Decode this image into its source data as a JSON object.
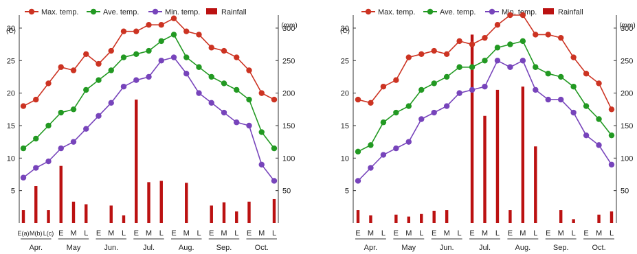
{
  "colors": {
    "max": "#cc3322",
    "ave": "#229922",
    "min": "#7744bb",
    "rain": "#bb1111",
    "axis": "#333333"
  },
  "legend": {
    "max": "Max. temp.",
    "ave": "Ave. temp.",
    "min": "Min. temp.",
    "rain": "Rainfall"
  },
  "chart_data": [
    {
      "type": "line",
      "left_unit": "(C)",
      "right_unit": "(mm)",
      "ylim": [
        0,
        32
      ],
      "y2lim": [
        0,
        320
      ],
      "yticks": [
        "5",
        "10",
        "15",
        "20",
        "25",
        "30"
      ],
      "y2ticks": [
        "50",
        "100",
        "150",
        "200",
        "250",
        "300"
      ],
      "months": [
        "Apr.",
        "May",
        "Jun.",
        "Jul.",
        "Aug.",
        "Sep.",
        "Oct."
      ],
      "subticks": [
        "E",
        "M",
        "L"
      ],
      "first_subticks": [
        "E(a)",
        "M(b)",
        "L(c)"
      ],
      "series": [
        {
          "name": "Max. temp.",
          "values": [
            18,
            19,
            21.5,
            24,
            23.5,
            26,
            24.5,
            26.5,
            29.5,
            29.5,
            30.5,
            30.5,
            31.5,
            29.5,
            29,
            27,
            26.5,
            25.5,
            23.5,
            20,
            19
          ]
        },
        {
          "name": "Ave. temp.",
          "values": [
            11.5,
            13,
            15,
            17,
            17.5,
            20.5,
            22,
            23.5,
            25.5,
            26,
            26.5,
            28,
            29,
            25.5,
            24,
            22.5,
            21.5,
            20.5,
            19,
            14,
            11.5
          ]
        },
        {
          "name": "Min. temp.",
          "values": [
            7,
            8.5,
            9.5,
            11.5,
            12.5,
            14.5,
            16.5,
            18.5,
            21,
            22,
            22.5,
            25,
            25.5,
            23,
            20,
            18.5,
            17,
            15.5,
            15,
            9,
            6.5
          ]
        },
        {
          "name": "Rainfall",
          "values": [
            20,
            57,
            20,
            88,
            33,
            29,
            null,
            27,
            12,
            190,
            63,
            65,
            null,
            62,
            null,
            27,
            32,
            18,
            33,
            null,
            37
          ]
        }
      ]
    },
    {
      "type": "line",
      "left_unit": "(C)",
      "right_unit": "(mm)",
      "ylim": [
        0,
        32
      ],
      "y2lim": [
        0,
        320
      ],
      "yticks": [
        "5",
        "10",
        "15",
        "20",
        "25",
        "30"
      ],
      "y2ticks": [
        "50",
        "100",
        "150",
        "200",
        "250",
        "300"
      ],
      "months": [
        "Apr.",
        "May",
        "Jun.",
        "Jul.",
        "Aug.",
        "Sep.",
        "Oct."
      ],
      "subticks": [
        "E",
        "M",
        "L"
      ],
      "series": [
        {
          "name": "Max. temp.",
          "values": [
            19,
            18.5,
            21,
            22,
            25.5,
            26,
            26.5,
            26,
            28,
            27.5,
            28.5,
            30.5,
            32,
            32,
            29,
            29,
            28.5,
            25.5,
            23,
            21.5,
            17.5
          ]
        },
        {
          "name": "Ave. temp.",
          "values": [
            11,
            12,
            15.5,
            17,
            18,
            20.5,
            21.5,
            22.5,
            24,
            24,
            25,
            27,
            27.5,
            28,
            24,
            23,
            22.5,
            21,
            18,
            16,
            13.5
          ]
        },
        {
          "name": "Min. temp.",
          "values": [
            6.5,
            8.5,
            10.5,
            11.5,
            12.5,
            16,
            17,
            18,
            20,
            20.5,
            21,
            25,
            24,
            25,
            20.5,
            19,
            19,
            17,
            13.5,
            12,
            9
          ]
        },
        {
          "name": "Rainfall",
          "values": [
            20,
            12,
            null,
            13,
            10,
            14,
            19,
            20,
            null,
            290,
            165,
            205,
            20,
            210,
            118,
            null,
            20,
            6,
            null,
            13,
            18
          ]
        }
      ]
    }
  ]
}
